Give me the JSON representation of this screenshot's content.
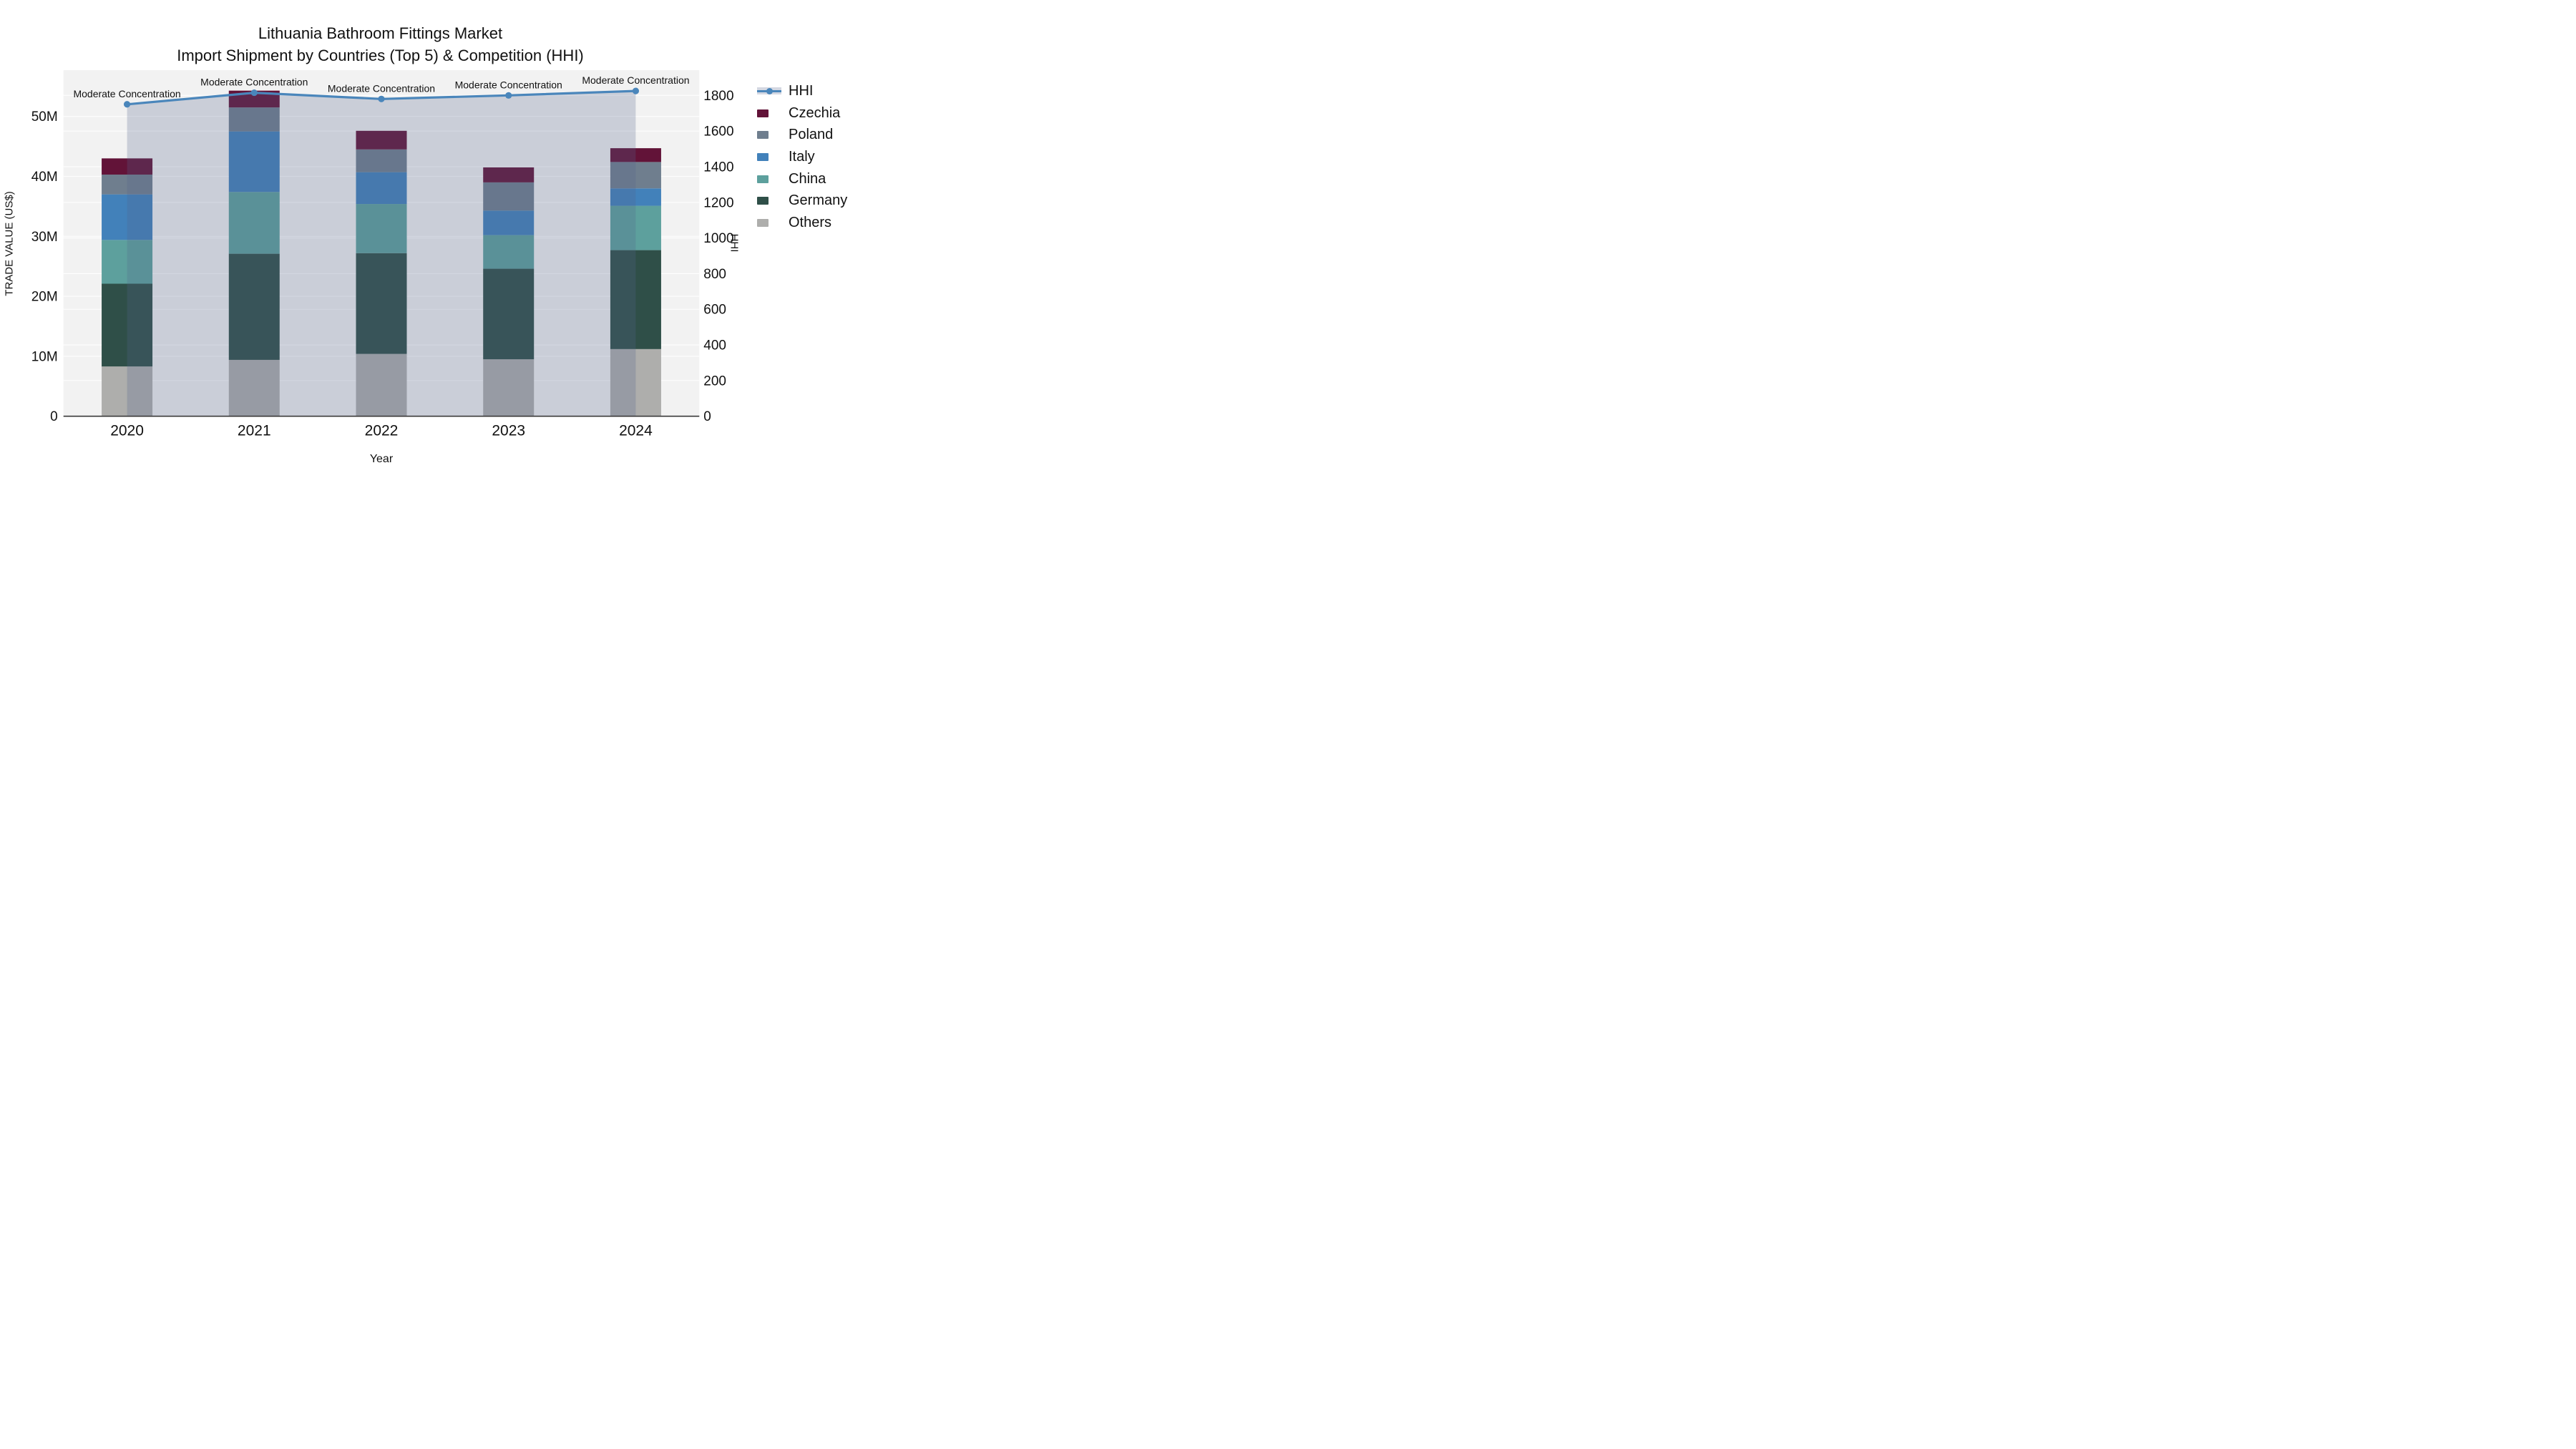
{
  "title": {
    "line1": "Lithuania Bathroom Fittings Market",
    "line2": "Import Shipment by Countries (Top 5) & Competition (HHI)"
  },
  "chart_data": {
    "type": "bar+line",
    "subtype": "stacked bars (left axis, trade value M US$) with HHI line on secondary right axis and translucent area fill under line",
    "categories": [
      "2020",
      "2021",
      "2022",
      "2023",
      "2024"
    ],
    "bar_unit": "M US$ (values in millions)",
    "bar_series_bottom_to_top": [
      {
        "name": "Others",
        "color": "#aeaeac",
        "values": [
          8.3,
          9.4,
          10.4,
          9.5,
          11.2
        ]
      },
      {
        "name": "Germany",
        "color": "#2f4f48",
        "values": [
          13.8,
          17.7,
          16.8,
          15.1,
          16.5
        ]
      },
      {
        "name": "China",
        "color": "#5da09d",
        "values": [
          7.3,
          10.3,
          8.2,
          5.6,
          7.4
        ]
      },
      {
        "name": "Italy",
        "color": "#4281ba",
        "values": [
          7.6,
          10.1,
          5.3,
          4.1,
          2.9
        ]
      },
      {
        "name": "Poland",
        "color": "#6f7e8e",
        "values": [
          3.3,
          4.0,
          3.8,
          4.7,
          4.4
        ]
      },
      {
        "name": "Czechia",
        "color": "#621338",
        "values": [
          2.7,
          2.8,
          3.1,
          2.5,
          2.3
        ]
      }
    ],
    "line_series": {
      "name": "HHI",
      "color": "#4a86bb",
      "fill_color": "rgba(82,98,138,0.25)",
      "values": [
        1750,
        1815,
        1780,
        1800,
        1825
      ]
    },
    "annotations": [
      {
        "text": "Moderate Concentration",
        "x_index": 0
      },
      {
        "text": "Moderate Concentration",
        "x_index": 1
      },
      {
        "text": "Moderate Concentration",
        "x_index": 2
      },
      {
        "text": "Moderate Concentration",
        "x_index": 3
      },
      {
        "text": "Moderate Concentration",
        "x_index": 4
      }
    ],
    "axes": {
      "x": {
        "label": "Year",
        "tick_labels": [
          "2020",
          "2021",
          "2022",
          "2023",
          "2024"
        ]
      },
      "y1": {
        "label": "TRADE VALUE (US$)",
        "tick_values": [
          0,
          10,
          20,
          30,
          40,
          50
        ],
        "tick_labels": [
          "0",
          "10M",
          "20M",
          "30M",
          "40M",
          "50M"
        ]
      },
      "y2": {
        "label": "HHI",
        "tick_values": [
          0,
          200,
          400,
          600,
          800,
          1000,
          1200,
          1400,
          1600,
          1800
        ],
        "tick_labels": [
          "0",
          "200",
          "400",
          "600",
          "800",
          "1000",
          "1200",
          "1400",
          "1600",
          "1800"
        ]
      }
    },
    "legend_top_to_bottom": [
      {
        "label": "HHI",
        "swatch": "line+fill",
        "color": "#4a86bb",
        "fill": "rgba(82,98,138,0.25)"
      },
      {
        "label": "Czechia",
        "swatch": "rect",
        "color": "#621338"
      },
      {
        "label": "Poland",
        "swatch": "rect",
        "color": "#6f7e8e"
      },
      {
        "label": "Italy",
        "swatch": "rect",
        "color": "#4281ba"
      },
      {
        "label": "China",
        "swatch": "rect",
        "color": "#5da09d"
      },
      {
        "label": "Germany",
        "swatch": "rect",
        "color": "#2f4f48"
      },
      {
        "label": "Others",
        "swatch": "rect",
        "color": "#aeaeac"
      }
    ],
    "style": {
      "plot_bg": "#f2f2f2",
      "grid_color": "rgba(255,255,255,0.9)",
      "axis_line_color": "#3a3a3a",
      "text_color": "#111111"
    }
  }
}
